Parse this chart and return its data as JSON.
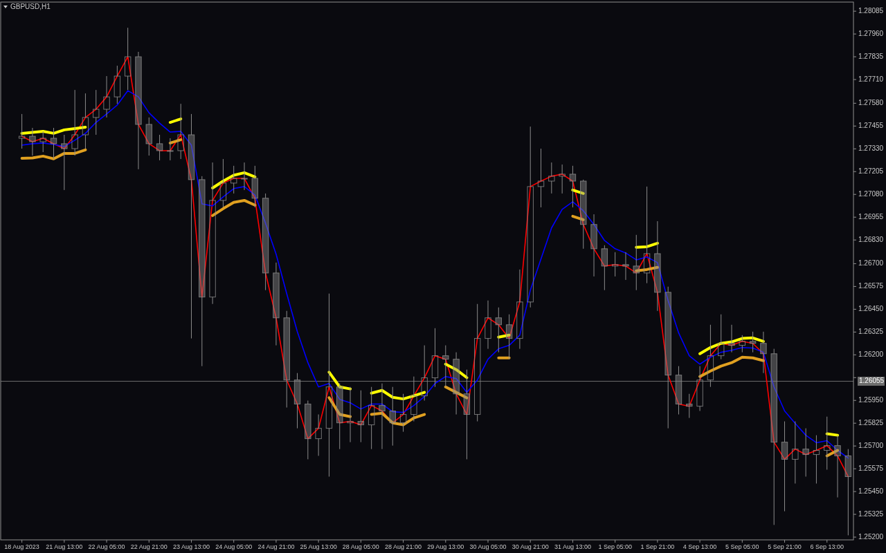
{
  "chart_data": {
    "type": "candlestick",
    "title": "GBPUSD,H1",
    "color": "#8c8c8c",
    "categories": [
      "18 Aug 2023",
      null,
      null,
      null,
      "21 Aug 13:00",
      null,
      null,
      null,
      "22 Aug 05:00",
      null,
      null,
      null,
      "22 Aug 21:00",
      null,
      null,
      null,
      "23 Aug 13:00",
      null,
      null,
      null,
      "24 Aug 05:00",
      null,
      null,
      null,
      "24 Aug 21:00",
      null,
      null,
      null,
      "25 Aug 13:00",
      null,
      null,
      null,
      "28 Aug 05:00",
      null,
      null,
      null,
      "28 Aug 21:00",
      null,
      null,
      null,
      "29 Aug 13:00",
      null,
      null,
      null,
      "30 Aug 05:00",
      null,
      null,
      null,
      "30 Aug 21:00",
      null,
      null,
      null,
      "31 Aug 13:00",
      null,
      null,
      null,
      "1 Sep 05:00",
      null,
      null,
      null,
      "1 Sep 21:00",
      null,
      null,
      null,
      "4 Sep 13:00",
      null,
      null,
      null,
      "5 Sep 05:00",
      null,
      null,
      null,
      "5 Sep 21:00",
      null,
      null,
      null,
      "6 Sep 13:00",
      null,
      null
    ],
    "ohlc": [
      [
        1.27388,
        1.27521,
        1.27331,
        1.27399
      ],
      [
        1.27399,
        1.27445,
        1.27293,
        1.27369
      ],
      [
        1.27369,
        1.27426,
        1.27312,
        1.27388
      ],
      [
        1.27388,
        1.27445,
        1.27274,
        1.27358
      ],
      [
        1.27358,
        1.27407,
        1.27104,
        1.27331
      ],
      [
        1.27331,
        1.27653,
        1.27293,
        1.27407
      ],
      [
        1.27407,
        1.27634,
        1.27331,
        1.27502
      ],
      [
        1.27502,
        1.27653,
        1.27407,
        1.27547
      ],
      [
        1.27547,
        1.27729,
        1.27502,
        1.27615
      ],
      [
        1.27615,
        1.27786,
        1.27577,
        1.27729
      ],
      [
        1.27729,
        1.27994,
        1.27653,
        1.27835
      ],
      [
        1.27835,
        1.27862,
        1.27218,
        1.27464
      ],
      [
        1.27464,
        1.27502,
        1.27293,
        1.27358
      ],
      [
        1.27358,
        1.27407,
        1.27267,
        1.2732
      ],
      [
        1.2732,
        1.27388,
        1.27267,
        1.2732
      ],
      [
        1.2732,
        1.27577,
        1.27274,
        1.27407
      ],
      [
        1.27407,
        1.27521,
        1.2629,
        1.27161
      ],
      [
        1.27161,
        1.2718,
        1.26138,
        1.26517
      ],
      [
        1.26517,
        1.27255,
        1.26479,
        1.27047
      ],
      [
        1.27047,
        1.27274,
        1.27009,
        1.27142
      ],
      [
        1.27142,
        1.27237,
        1.27085,
        1.27168
      ],
      [
        1.27168,
        1.27255,
        1.27104,
        1.27168
      ],
      [
        1.27168,
        1.27237,
        1.27009,
        1.27059
      ],
      [
        1.27059,
        1.27085,
        1.26555,
        1.26649
      ],
      [
        1.26649,
        1.26706,
        1.26252,
        1.26403
      ],
      [
        1.26403,
        1.26441,
        1.25911,
        1.26062
      ],
      [
        1.26062,
        1.261,
        1.25797,
        1.2593
      ],
      [
        1.2593,
        1.25949,
        1.25627,
        1.2574
      ],
      [
        1.2574,
        1.25873,
        1.25646,
        1.25797
      ],
      [
        1.25797,
        1.26536,
        1.25532,
        1.26024
      ],
      [
        1.26024,
        1.26043,
        1.25683,
        1.25827
      ],
      [
        1.25827,
        1.26024,
        1.25721,
        1.25835
      ],
      [
        1.25835,
        1.26005,
        1.25721,
        1.25816
      ],
      [
        1.25816,
        1.26024,
        1.25683,
        1.25922
      ],
      [
        1.25922,
        1.26043,
        1.25683,
        1.25892
      ],
      [
        1.25892,
        1.26024,
        1.25702,
        1.25827
      ],
      [
        1.25827,
        1.25986,
        1.25778,
        1.25873
      ],
      [
        1.25873,
        1.26081,
        1.25835,
        1.25975
      ],
      [
        1.25975,
        1.26252,
        1.25949,
        1.26074
      ],
      [
        1.26074,
        1.26346,
        1.26024,
        1.26195
      ],
      [
        1.26195,
        1.26252,
        1.26024,
        1.26176
      ],
      [
        1.26176,
        1.26214,
        1.25873,
        1.25986
      ],
      [
        1.25986,
        1.26119,
        1.25627,
        1.25873
      ],
      [
        1.25873,
        1.26479,
        1.25835,
        1.2629
      ],
      [
        1.2629,
        1.26498,
        1.26233,
        1.26403
      ],
      [
        1.26403,
        1.2646,
        1.26214,
        1.26365
      ],
      [
        1.26365,
        1.26422,
        1.26176,
        1.2629
      ],
      [
        1.2629,
        1.26668,
        1.26233,
        1.2649
      ],
      [
        1.2649,
        1.27452,
        1.2646,
        1.27123
      ],
      [
        1.27123,
        1.27331,
        1.27009,
        1.27153
      ],
      [
        1.27153,
        1.27255,
        1.27085,
        1.2718
      ],
      [
        1.2718,
        1.27244,
        1.27085,
        1.27191
      ],
      [
        1.27191,
        1.27237,
        1.27009,
        1.27153
      ],
      [
        1.27153,
        1.27161,
        1.26782,
        1.26915
      ],
      [
        1.26915,
        1.26971,
        1.2663,
        1.26782
      ],
      [
        1.26782,
        1.26801,
        1.26555,
        1.26687
      ],
      [
        1.26687,
        1.26763,
        1.2663,
        1.26695
      ],
      [
        1.26695,
        1.26763,
        1.26611,
        1.26687
      ],
      [
        1.26687,
        1.26858,
        1.26555,
        1.26649
      ],
      [
        1.26649,
        1.27123,
        1.26593,
        1.26755
      ],
      [
        1.26755,
        1.26933,
        1.26441,
        1.26543
      ],
      [
        1.26543,
        1.26574,
        1.25797,
        1.26089
      ],
      [
        1.26089,
        1.26138,
        1.25873,
        1.2593
      ],
      [
        1.2593,
        1.25986,
        1.25854,
        1.25918
      ],
      [
        1.25918,
        1.26138,
        1.25892,
        1.26062
      ],
      [
        1.26062,
        1.26365,
        1.26024,
        1.26195
      ],
      [
        1.26195,
        1.26422,
        1.26176,
        1.26263
      ],
      [
        1.26263,
        1.26365,
        1.26214,
        1.26252
      ],
      [
        1.26252,
        1.26308,
        1.26214,
        1.26274
      ],
      [
        1.26274,
        1.26327,
        1.26214,
        1.26263
      ],
      [
        1.26263,
        1.26327,
        1.261,
        1.26206
      ],
      [
        1.26206,
        1.26233,
        1.25267,
        1.25721
      ],
      [
        1.25721,
        1.25835,
        1.25342,
        1.25627
      ],
      [
        1.25627,
        1.25835,
        1.25494,
        1.25683
      ],
      [
        1.25683,
        1.25797,
        1.25532,
        1.25653
      ],
      [
        1.25653,
        1.25759,
        1.25494,
        1.25676
      ],
      [
        1.25676,
        1.25861,
        1.2557,
        1.25702
      ],
      [
        1.25702,
        1.25759,
        1.25418,
        1.25646
      ],
      [
        1.25646,
        1.25683,
        1.2521,
        1.25532
      ]
    ],
    "series": [
      {
        "type": "line",
        "color": "#ff0000",
        "values": [
          1.27399,
          1.27369,
          1.27388,
          1.27358,
          1.27331,
          1.27407,
          1.27502,
          1.27547,
          1.27615,
          1.27729,
          1.27835,
          1.27464,
          1.27358,
          1.2732,
          1.2732,
          1.27407,
          1.27161,
          1.26517,
          1.27047,
          1.27142,
          1.27168,
          1.27168,
          1.27059,
          1.26649,
          1.26403,
          1.26062,
          1.2593,
          1.2574,
          1.25797,
          1.26024,
          1.25827,
          1.25835,
          1.25816,
          1.25922,
          1.25892,
          1.25827,
          1.25873,
          1.25975,
          1.26074,
          1.26195,
          1.26176,
          1.25986,
          1.25873,
          1.2629,
          1.26403,
          1.26365,
          1.2629,
          1.2649,
          1.27123,
          1.27153,
          1.2718,
          1.27191,
          1.27153,
          1.26915,
          1.26782,
          1.26687,
          1.26695,
          1.26687,
          1.26649,
          1.26755,
          1.26543,
          1.26089,
          1.2593,
          1.25918,
          1.26062,
          1.26195,
          1.26263,
          1.26252,
          1.26274,
          1.26263,
          1.26206,
          1.25721,
          1.25627,
          1.25683,
          1.25653,
          1.25676,
          1.25702,
          1.25646,
          1.25532
        ]
      },
      {
        "type": "line",
        "color": "#0000ff",
        "values": [
          1.2735,
          1.27358,
          1.27362,
          1.27354,
          1.27343,
          1.27377,
          1.27415,
          1.27475,
          1.27521,
          1.2757,
          1.27649,
          1.27615,
          1.27528,
          1.27471,
          1.27422,
          1.27426,
          1.2735,
          1.27028,
          1.27017,
          1.27066,
          1.27112,
          1.27123,
          1.27077,
          1.26922,
          1.26752,
          1.26536,
          1.26327,
          1.26157,
          1.26024,
          1.26043,
          1.25956,
          1.25937,
          1.25903,
          1.2593,
          1.2593,
          1.25888,
          1.25884,
          1.25922,
          1.25971,
          1.26043,
          1.26081,
          1.2607,
          1.25994,
          1.26062,
          1.26176,
          1.26233,
          1.26252,
          1.26308,
          1.26555,
          1.26725,
          1.26896,
          1.26998,
          1.2704,
          1.2699,
          1.26915,
          1.26827,
          1.26782,
          1.26759,
          1.26721,
          1.26737,
          1.26706,
          1.26498,
          1.2632,
          1.26195,
          1.26149,
          1.26187,
          1.26214,
          1.26225,
          1.2624,
          1.26237,
          1.26214,
          1.26024,
          1.25892,
          1.25824,
          1.25759,
          1.25718,
          1.25729,
          1.25676,
          1.25634
        ]
      },
      {
        "type": "line",
        "color": "#ffff00",
        "values": [
          1.27415,
          1.2742,
          1.27426,
          1.27415,
          1.27434,
          1.27441,
          1.27449,
          null,
          null,
          null,
          null,
          null,
          null,
          null,
          1.27475,
          1.27494,
          null,
          null,
          1.27115,
          1.27153,
          1.27185,
          1.27199,
          1.27176,
          null,
          null,
          null,
          null,
          null,
          null,
          1.26105,
          1.26024,
          1.26013,
          null,
          1.2599,
          1.26005,
          1.25967,
          1.25958,
          1.25975,
          1.25994,
          null,
          1.26149,
          1.26119,
          1.26075,
          null,
          null,
          1.26297,
          1.26308,
          null,
          null,
          null,
          null,
          null,
          1.27104,
          1.27085,
          null,
          null,
          null,
          null,
          1.2679,
          1.26793,
          1.26812,
          null,
          null,
          null,
          1.26206,
          1.2624,
          1.26263,
          1.26271,
          1.2629,
          1.26293,
          1.26274,
          null,
          null,
          null,
          null,
          null,
          1.25767,
          1.25759,
          null
        ]
      },
      {
        "type": "line",
        "color": "#e0a020",
        "values": [
          1.27278,
          1.2728,
          1.2729,
          1.27275,
          1.27305,
          1.27305,
          1.27324,
          null,
          null,
          null,
          null,
          null,
          null,
          null,
          1.27362,
          1.2738,
          null,
          null,
          1.26964,
          1.27002,
          1.27036,
          1.27047,
          1.27021,
          null,
          null,
          null,
          null,
          null,
          null,
          1.25965,
          1.25873,
          1.25861,
          null,
          1.25873,
          1.2588,
          1.25827,
          1.25816,
          1.25854,
          1.25873,
          null,
          1.26024,
          1.25994,
          1.25964,
          null,
          null,
          1.26183,
          1.26183,
          null,
          null,
          null,
          null,
          null,
          1.2696,
          1.26941,
          null,
          null,
          null,
          null,
          1.26661,
          1.26668,
          1.2668,
          null,
          null,
          null,
          1.26081,
          1.26111,
          1.26138,
          1.26157,
          1.26187,
          1.26183,
          1.26168,
          null,
          null,
          null,
          null,
          null,
          1.25646,
          1.25676,
          null
        ]
      }
    ],
    "ylim": [
      1.25185,
      1.28135
    ],
    "yticks": [
      1.28085,
      {
        "value": 1.2796,
        "label": "1.27960"
      },
      1.27835,
      {
        "value": 1.2771,
        "label": "1.27710"
      },
      {
        "value": 1.2758,
        "label": "1.27580"
      },
      1.27455,
      {
        "value": 1.2733,
        "label": "1.27330"
      },
      1.27205,
      {
        "value": 1.2708,
        "label": "1.27080"
      },
      1.26955,
      {
        "value": 1.2683,
        "label": "1.26830"
      },
      {
        "value": 1.267,
        "label": "1.26700"
      },
      1.26575,
      {
        "value": 1.2645,
        "label": "1.26450"
      },
      1.26325,
      {
        "value": 1.262,
        "label": "1.26200"
      },
      {
        "value": 1.26075,
        "label": null
      },
      {
        "value": 1.2595,
        "label": "1.25950"
      },
      1.25825,
      {
        "value": 1.257,
        "label": "1.25700"
      },
      1.25575,
      {
        "value": 1.2545,
        "label": "1.25450"
      },
      1.25325,
      {
        "value": 1.252,
        "label": "1.25200"
      }
    ],
    "ref_lines": [
      {
        "axis": "y",
        "value": 1.26055,
        "label": "1.26055",
        "color": "#6e6e6e"
      }
    ]
  }
}
